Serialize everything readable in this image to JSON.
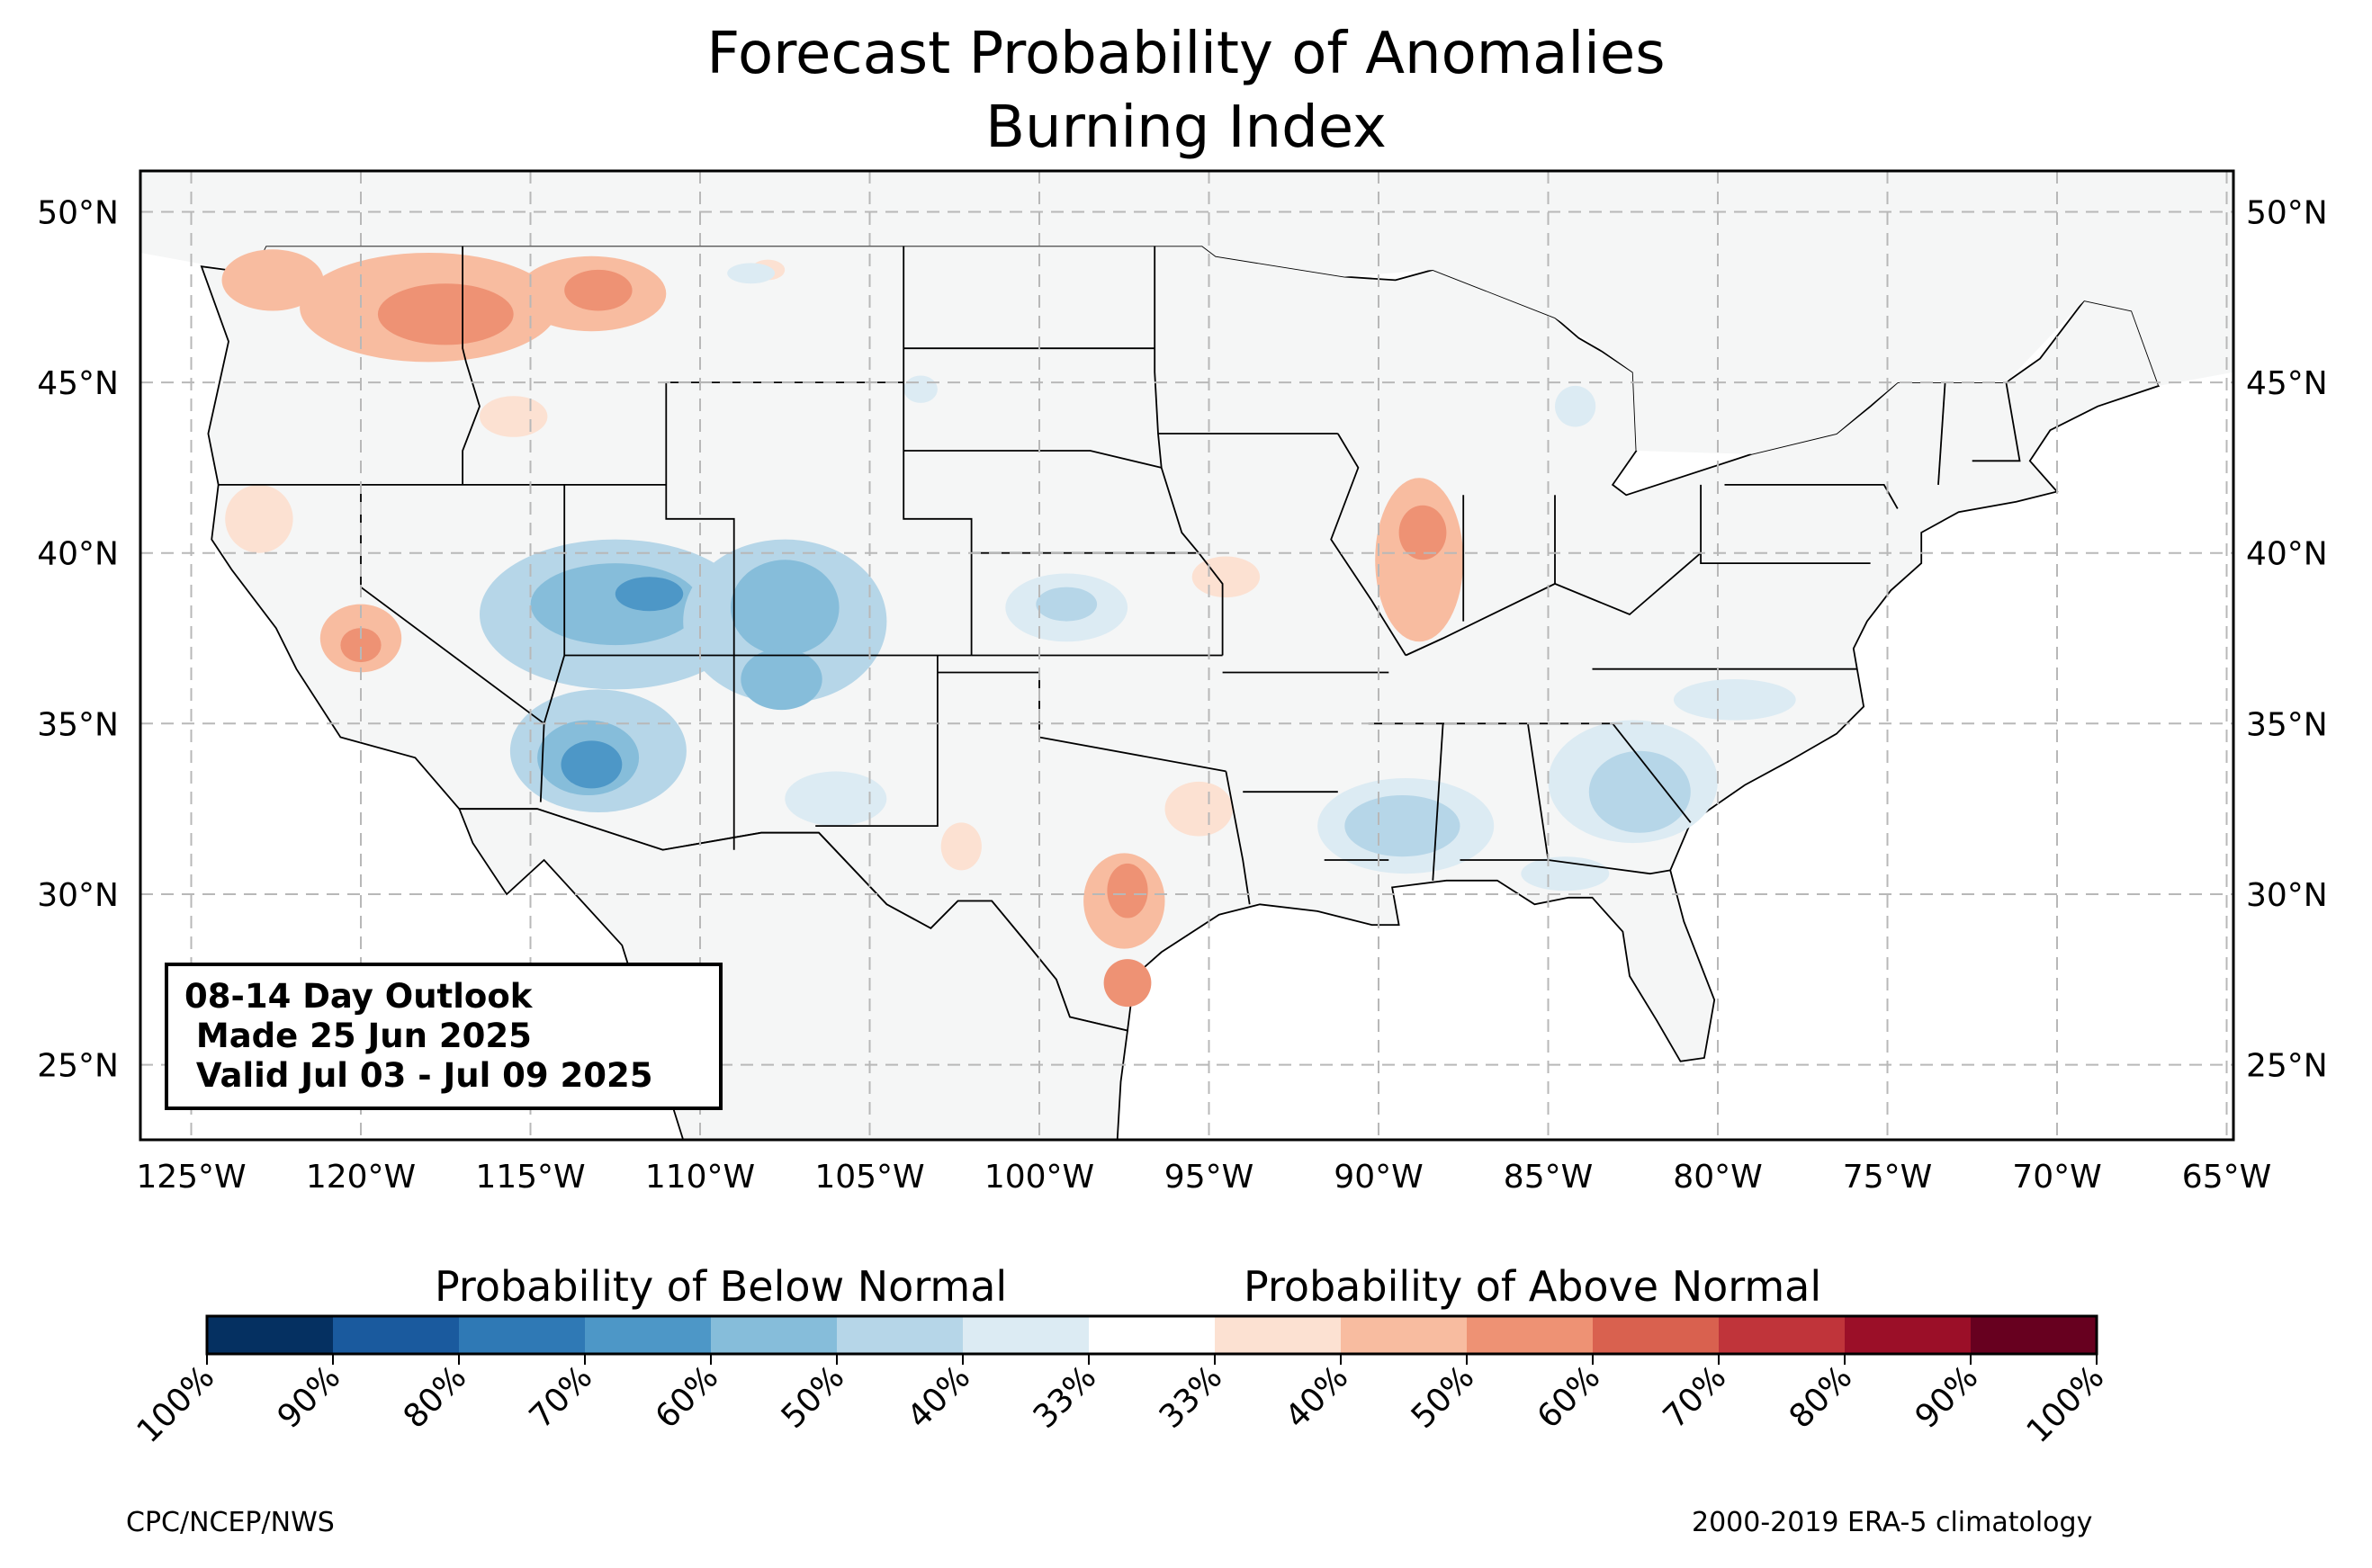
{
  "title": {
    "line1": "Forecast Probability of Anomalies",
    "line2": "Burning Index"
  },
  "map": {
    "lon_range": [
      -126.5,
      -64.8
    ],
    "lat_range": [
      22.8,
      51.2
    ],
    "lon_ticks": [
      {
        "lon": -125,
        "label": "125°W"
      },
      {
        "lon": -120,
        "label": "120°W"
      },
      {
        "lon": -115,
        "label": "115°W"
      },
      {
        "lon": -110,
        "label": "110°W"
      },
      {
        "lon": -105,
        "label": "105°W"
      },
      {
        "lon": -100,
        "label": "100°W"
      },
      {
        "lon": -95,
        "label": "95°W"
      },
      {
        "lon": -90,
        "label": "90°W"
      },
      {
        "lon": -85,
        "label": "85°W"
      },
      {
        "lon": -80,
        "label": "80°W"
      },
      {
        "lon": -75,
        "label": "75°W"
      },
      {
        "lon": -70,
        "label": "70°W"
      },
      {
        "lon": -65,
        "label": "65°W"
      }
    ],
    "lat_ticks": [
      {
        "lat": 50,
        "label": "50°N"
      },
      {
        "lat": 45,
        "label": "45°N"
      },
      {
        "lat": 40,
        "label": "40°N"
      },
      {
        "lat": 35,
        "label": "35°N"
      },
      {
        "lat": 30,
        "label": "30°N"
      },
      {
        "lat": 25,
        "label": "25°N"
      }
    ],
    "land_color": "#f5f6f6",
    "anomalies": [
      {
        "type": "above",
        "level": 50,
        "center": [
          -118.0,
          47.2
        ],
        "radius": [
          3.8,
          1.6
        ]
      },
      {
        "type": "above",
        "level": 60,
        "center": [
          -117.5,
          47.0
        ],
        "radius": [
          2.0,
          0.9
        ]
      },
      {
        "type": "above",
        "level": 50,
        "center": [
          -122.6,
          48.0
        ],
        "radius": [
          1.5,
          0.9
        ]
      },
      {
        "type": "above",
        "level": 50,
        "center": [
          -113.2,
          47.6
        ],
        "radius": [
          2.2,
          1.1
        ]
      },
      {
        "type": "above",
        "level": 60,
        "center": [
          -113.0,
          47.7
        ],
        "radius": [
          1.0,
          0.6
        ]
      },
      {
        "type": "above",
        "level": 40,
        "center": [
          -115.5,
          44.0
        ],
        "radius": [
          1.0,
          0.6
        ]
      },
      {
        "type": "above",
        "level": 40,
        "center": [
          -123.0,
          41.0
        ],
        "radius": [
          1.0,
          1.0
        ]
      },
      {
        "type": "above",
        "level": 50,
        "center": [
          -120.0,
          37.5
        ],
        "radius": [
          1.2,
          1.0
        ]
      },
      {
        "type": "above",
        "level": 60,
        "center": [
          -120.0,
          37.3
        ],
        "radius": [
          0.6,
          0.5
        ]
      },
      {
        "type": "above",
        "level": 50,
        "center": [
          -88.8,
          39.8
        ],
        "radius": [
          1.3,
          2.4
        ]
      },
      {
        "type": "above",
        "level": 60,
        "center": [
          -88.7,
          40.6
        ],
        "radius": [
          0.7,
          0.8
        ]
      },
      {
        "type": "above",
        "level": 40,
        "center": [
          -94.5,
          39.3
        ],
        "radius": [
          1.0,
          0.6
        ]
      },
      {
        "type": "above",
        "level": 50,
        "center": [
          -97.5,
          29.8
        ],
        "radius": [
          1.2,
          1.4
        ]
      },
      {
        "type": "above",
        "level": 60,
        "center": [
          -97.4,
          30.1
        ],
        "radius": [
          0.6,
          0.8
        ]
      },
      {
        "type": "above",
        "level": 60,
        "center": [
          -97.4,
          27.4
        ],
        "radius": [
          0.7,
          0.7
        ]
      },
      {
        "type": "above",
        "level": 40,
        "center": [
          -95.3,
          32.5
        ],
        "radius": [
          1.0,
          0.8
        ]
      },
      {
        "type": "above",
        "level": 40,
        "center": [
          -102.3,
          31.4
        ],
        "radius": [
          0.6,
          0.7
        ]
      },
      {
        "type": "above",
        "level": 40,
        "center": [
          -108.0,
          48.3
        ],
        "radius": [
          0.5,
          0.3
        ]
      },
      {
        "type": "below",
        "level": 50,
        "center": [
          -112.5,
          38.2
        ],
        "radius": [
          4.0,
          2.2
        ]
      },
      {
        "type": "below",
        "level": 60,
        "center": [
          -112.5,
          38.5
        ],
        "radius": [
          2.5,
          1.2
        ]
      },
      {
        "type": "below",
        "level": 70,
        "center": [
          -111.5,
          38.8
        ],
        "radius": [
          1.0,
          0.5
        ]
      },
      {
        "type": "below",
        "level": 50,
        "center": [
          -107.5,
          38.0
        ],
        "radius": [
          3.0,
          2.4
        ]
      },
      {
        "type": "below",
        "level": 60,
        "center": [
          -107.5,
          38.4
        ],
        "radius": [
          1.6,
          1.4
        ]
      },
      {
        "type": "below",
        "level": 60,
        "center": [
          -107.6,
          36.3
        ],
        "radius": [
          1.2,
          0.9
        ]
      },
      {
        "type": "below",
        "level": 50,
        "center": [
          -113.0,
          34.2
        ],
        "radius": [
          2.6,
          1.8
        ]
      },
      {
        "type": "below",
        "level": 60,
        "center": [
          -113.3,
          34.0
        ],
        "radius": [
          1.5,
          1.1
        ]
      },
      {
        "type": "below",
        "level": 70,
        "center": [
          -113.2,
          33.8
        ],
        "radius": [
          0.9,
          0.7
        ]
      },
      {
        "type": "below",
        "level": 40,
        "center": [
          -106.0,
          32.8
        ],
        "radius": [
          1.5,
          0.8
        ]
      },
      {
        "type": "below",
        "level": 40,
        "center": [
          -99.2,
          38.4
        ],
        "radius": [
          1.8,
          1.0
        ]
      },
      {
        "type": "below",
        "level": 50,
        "center": [
          -99.2,
          38.5
        ],
        "radius": [
          0.9,
          0.5
        ]
      },
      {
        "type": "below",
        "level": 40,
        "center": [
          -89.2,
          32.0
        ],
        "radius": [
          2.6,
          1.4
        ]
      },
      {
        "type": "below",
        "level": 50,
        "center": [
          -89.3,
          32.0
        ],
        "radius": [
          1.7,
          0.9
        ]
      },
      {
        "type": "below",
        "level": 40,
        "center": [
          -82.5,
          33.3
        ],
        "radius": [
          2.5,
          1.8
        ]
      },
      {
        "type": "below",
        "level": 50,
        "center": [
          -82.3,
          33.0
        ],
        "radius": [
          1.5,
          1.2
        ]
      },
      {
        "type": "below",
        "level": 40,
        "center": [
          -79.5,
          35.7
        ],
        "radius": [
          1.8,
          0.6
        ]
      },
      {
        "type": "below",
        "level": 40,
        "center": [
          -84.5,
          30.6
        ],
        "radius": [
          1.3,
          0.5
        ]
      },
      {
        "type": "below",
        "level": 40,
        "center": [
          -84.2,
          44.3
        ],
        "radius": [
          0.6,
          0.6
        ]
      },
      {
        "type": "below",
        "level": 40,
        "center": [
          -103.5,
          44.8
        ],
        "radius": [
          0.5,
          0.4
        ]
      },
      {
        "type": "below",
        "level": 40,
        "center": [
          -108.5,
          48.2
        ],
        "radius": [
          0.7,
          0.3
        ]
      }
    ]
  },
  "outlook_box": {
    "line1": "08-14 Day Outlook",
    "line2": " Made 25 Jun 2025",
    "line3": " Valid Jul 03 - Jul 09 2025"
  },
  "colorbar": {
    "below_title": "Probability of Below Normal",
    "above_title": "Probability of Above Normal",
    "colors": [
      "#053061",
      "#1a5a9e",
      "#2f79b5",
      "#4d97c7",
      "#86bdda",
      "#b6d6e8",
      "#dcebf3",
      "#ffffff",
      "#fce1d2",
      "#f8bca0",
      "#ee9274",
      "#d9614f",
      "#c0343a",
      "#9b0f28",
      "#67001f"
    ],
    "tick_labels": [
      "100%",
      "90%",
      "80%",
      "70%",
      "60%",
      "50%",
      "40%",
      "33%",
      "33%",
      "40%",
      "50%",
      "60%",
      "70%",
      "80%",
      "90%",
      "100%"
    ]
  },
  "credits": {
    "left": "CPC/NCEP/NWS",
    "right": "2000-2019 ERA-5 climatology"
  }
}
